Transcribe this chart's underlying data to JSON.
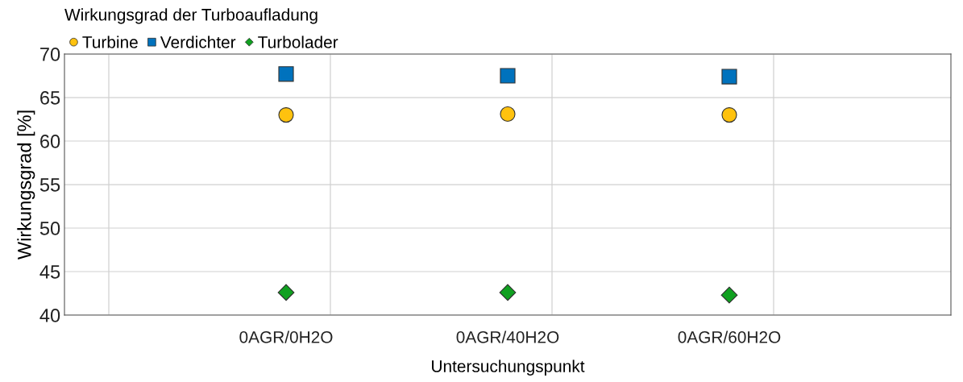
{
  "chart_data": {
    "type": "scatter",
    "title": "Wirkungsgrad der Turboaufladung",
    "xlabel": "Untersuchungspunkt",
    "ylabel": "Wirkungsgrad [%]",
    "categories": [
      "0AGR/0H2O",
      "0AGR/40H2O",
      "0AGR/60H2O"
    ],
    "ylim": [
      40,
      70
    ],
    "yticks": [
      40,
      45,
      50,
      55,
      60,
      65,
      70
    ],
    "series": [
      {
        "name": "Turbine",
        "color": "#ffc20e",
        "marker": "circle",
        "values": [
          63.0,
          63.1,
          63.0
        ]
      },
      {
        "name": "Verdichter",
        "color": "#0072bd",
        "marker": "square",
        "values": [
          67.7,
          67.5,
          67.4
        ]
      },
      {
        "name": "Turbolader",
        "color": "#10a020",
        "marker": "diamond",
        "values": [
          42.6,
          42.6,
          42.3
        ]
      }
    ],
    "grid": true,
    "legend": "top left"
  }
}
